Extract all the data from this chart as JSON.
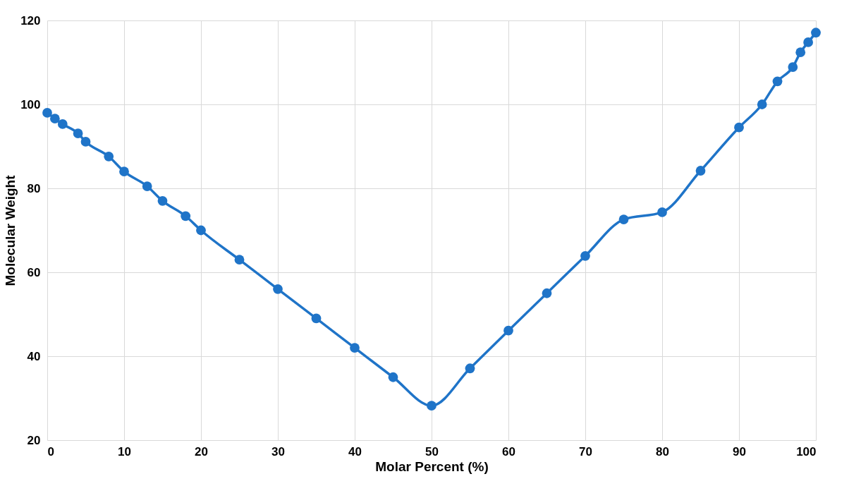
{
  "chart_data": {
    "type": "line",
    "xlabel": "Molar Percent (%)",
    "ylabel": "Molecular Weight",
    "x": [
      0,
      1,
      2,
      4,
      5,
      8,
      10,
      13,
      15,
      18,
      20,
      25,
      30,
      35,
      40,
      45,
      50,
      55,
      60,
      65,
      70,
      75,
      80,
      85,
      90,
      93,
      95,
      97,
      98,
      99,
      100
    ],
    "series": [
      {
        "color": "#1f74c8",
        "values": [
          98.0,
          96.6,
          95.3,
          93.1,
          91.1,
          87.6,
          84.0,
          80.5,
          77.0,
          73.4,
          70.0,
          63.0,
          56.0,
          49.0,
          42.0,
          35.0,
          28.2,
          37.1,
          46.1,
          55.0,
          63.9,
          72.6,
          74.3,
          84.2,
          94.5,
          100.0,
          105.5,
          108.9,
          112.4,
          114.8,
          117.1
        ]
      }
    ],
    "xlim": [
      0,
      100
    ],
    "xticks": [
      0,
      10,
      20,
      30,
      40,
      50,
      60,
      70,
      80,
      90,
      100
    ],
    "ylim": [
      20,
      120
    ],
    "yticks": [
      20,
      40,
      60,
      80,
      100,
      120
    ],
    "grid": true,
    "marker": "circle",
    "line_style": "solid",
    "legend": false
  }
}
